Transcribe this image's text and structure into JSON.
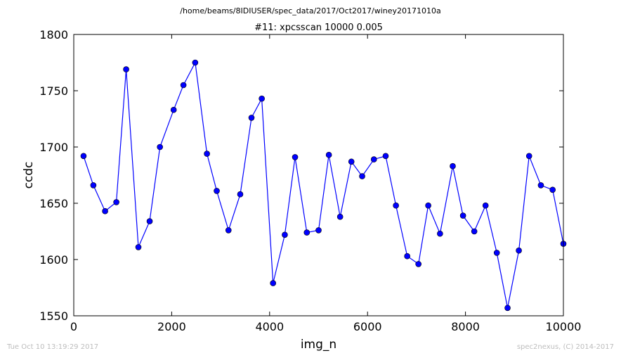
{
  "figure": {
    "suptitle": "/home/beams/8IDIUSER/spec_data/2017/Oct2017/winey20171010a",
    "timestamp": "Tue Oct 10 13:19:29 2017",
    "credit": "spec2nexus, (C) 2014-2017"
  },
  "chart_data": {
    "type": "line",
    "title": "#11: xpcsscan 10000 0.005",
    "xlabel": "img_n",
    "ylabel": "ccdc",
    "xlim": [
      0,
      10000
    ],
    "ylim": [
      1550,
      1800
    ],
    "xticks": [
      0,
      2000,
      4000,
      6000,
      8000,
      10000
    ],
    "yticks": [
      1550,
      1600,
      1650,
      1700,
      1750,
      1800
    ],
    "grid": false,
    "legend": "none",
    "colors": {
      "line": "#0000ff",
      "marker": "#0000ff"
    },
    "series": [
      {
        "x": [
          200,
          400,
          640,
          870,
          1070,
          1320,
          1550,
          1760,
          2040,
          2240,
          2480,
          2720,
          2920,
          3160,
          3400,
          3630,
          3840,
          4070,
          4310,
          4520,
          4760,
          5000,
          5210,
          5440,
          5670,
          5890,
          6130,
          6370,
          6580,
          6810,
          7040,
          7240,
          7480,
          7740,
          7950,
          8180,
          8410,
          8640,
          8860,
          9090,
          9300,
          9540,
          9780,
          10000
        ],
        "y": [
          1692,
          1666,
          1643,
          1651,
          1769,
          1611,
          1634,
          1700,
          1733,
          1755,
          1775,
          1694,
          1661,
          1626,
          1658,
          1726,
          1743,
          1579,
          1622,
          1691,
          1624,
          1626,
          1693,
          1638,
          1687,
          1674,
          1689,
          1692,
          1648,
          1603,
          1596,
          1648,
          1623,
          1683,
          1639,
          1625,
          1648,
          1606,
          1557,
          1608,
          1692,
          1666,
          1662,
          1614
        ]
      }
    ]
  }
}
